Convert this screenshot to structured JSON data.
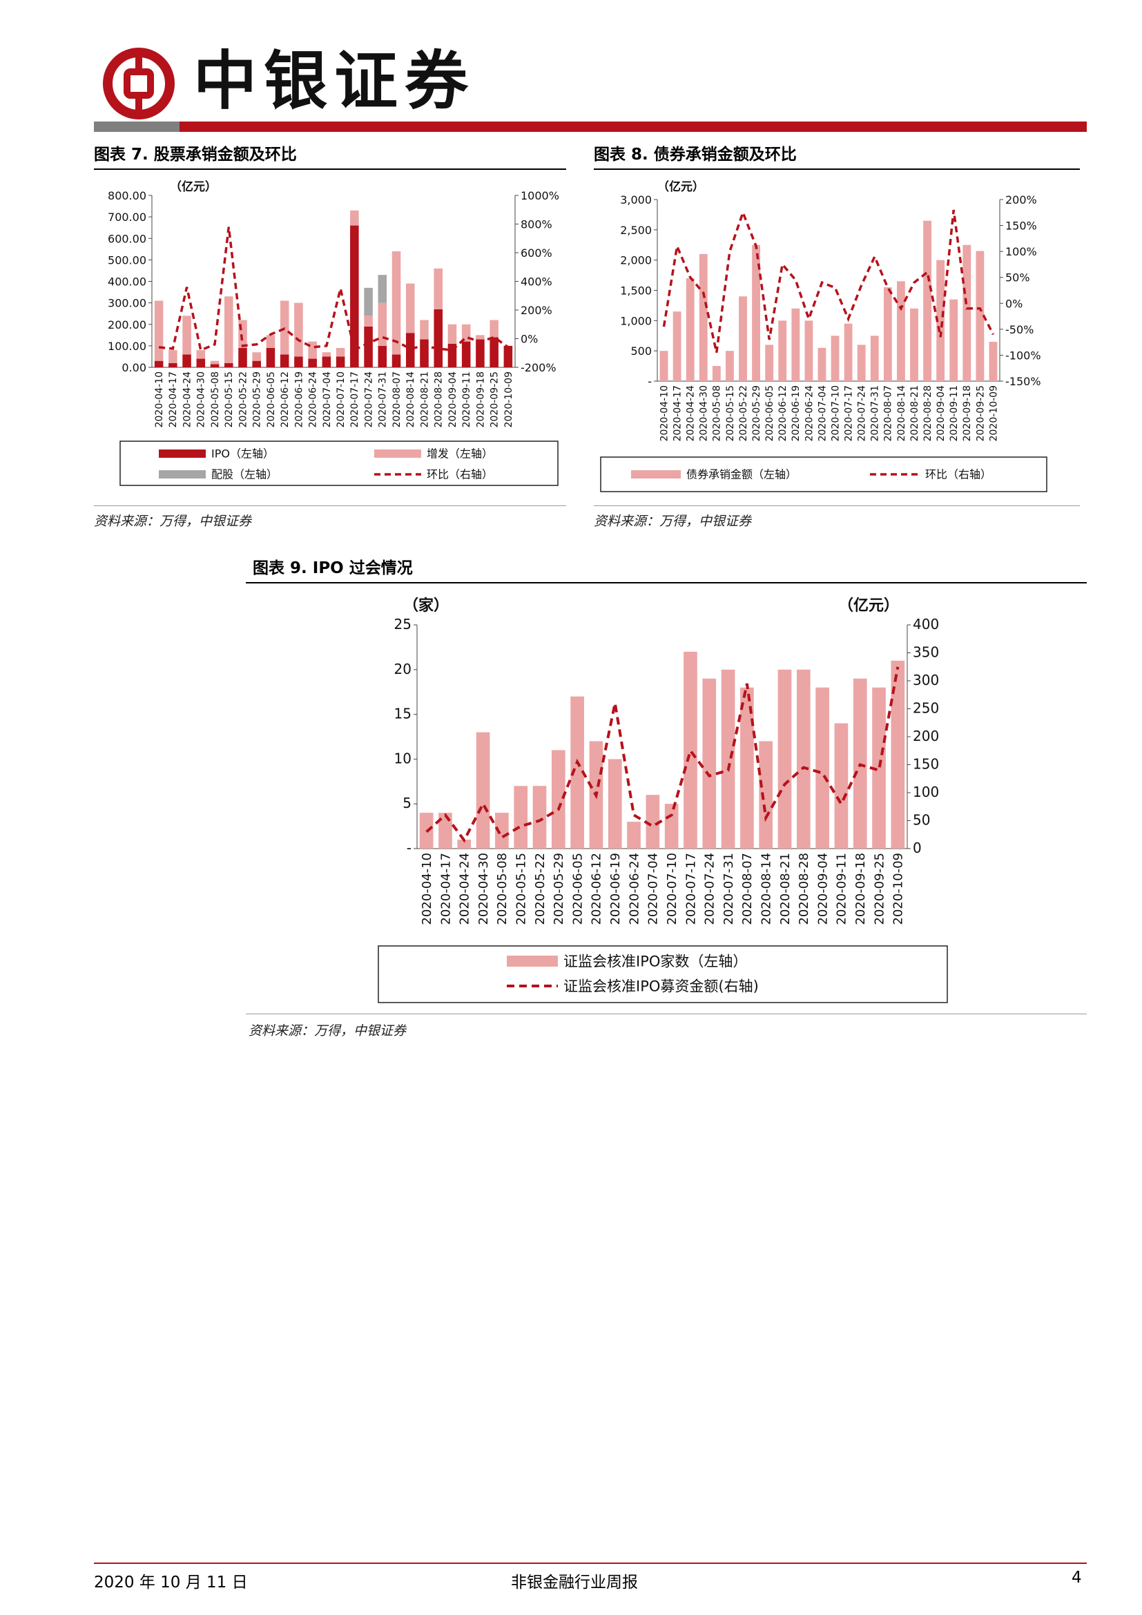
{
  "header": {
    "brand": "中银证券",
    "logo_name": "bank-of-china-logo",
    "colors": {
      "brand_red": "#b5121b",
      "bar_gray": "#7f7f7f"
    }
  },
  "fig7": {
    "title": "图表 7. 股票承销金额及环比",
    "source": "资料来源：万得，中银证券",
    "chart_data": {
      "type": "bar",
      "stacked": true,
      "unit_left": "（亿元）",
      "categories": [
        "2020-04-10",
        "2020-04-17",
        "2020-04-24",
        "2020-04-30",
        "2020-05-08",
        "2020-05-15",
        "2020-05-22",
        "2020-05-29",
        "2020-06-05",
        "2020-06-12",
        "2020-06-19",
        "2020-06-24",
        "2020-07-04",
        "2020-07-10",
        "2020-07-17",
        "2020-07-24",
        "2020-07-31",
        "2020-08-07",
        "2020-08-14",
        "2020-08-21",
        "2020-08-28",
        "2020-09-04",
        "2020-09-11",
        "2020-09-18",
        "2020-09-25",
        "2020-10-09"
      ],
      "left_ticks": [
        "800.00",
        "700.00",
        "600.00",
        "500.00",
        "400.00",
        "300.00",
        "200.00",
        "100.00",
        "0.00"
      ],
      "right_ticks": [
        "1000%",
        "800%",
        "600%",
        "400%",
        "200%",
        "0%",
        "-200%"
      ],
      "ylim": [
        0,
        800
      ],
      "y2lim": [
        -200,
        1000
      ],
      "series": [
        {
          "name": "IPO（左轴）",
          "kind": "bar",
          "color": "#b5121b",
          "values": [
            30,
            20,
            60,
            40,
            15,
            20,
            90,
            30,
            90,
            60,
            50,
            40,
            50,
            50,
            660,
            190,
            100,
            60,
            160,
            130,
            270,
            110,
            120,
            130,
            140,
            100
          ]
        },
        {
          "name": "增发（左轴）",
          "kind": "bar",
          "color": "#eba5a5",
          "values": [
            280,
            60,
            180,
            40,
            15,
            310,
            130,
            40,
            60,
            250,
            250,
            80,
            20,
            40,
            70,
            50,
            200,
            480,
            230,
            90,
            190,
            90,
            80,
            20,
            80,
            0
          ]
        },
        {
          "name": "配股（左轴）",
          "kind": "bar",
          "color": "#a6a6a6",
          "values": [
            0,
            0,
            0,
            0,
            0,
            0,
            0,
            0,
            0,
            0,
            0,
            0,
            0,
            0,
            0,
            130,
            130,
            0,
            0,
            0,
            0,
            0,
            0,
            0,
            0,
            0
          ]
        },
        {
          "name": "环比（右轴）",
          "kind": "line",
          "color": "#b5121b",
          "values": [
            -60,
            -70,
            360,
            -80,
            -40,
            780,
            -50,
            -40,
            30,
            70,
            -10,
            -60,
            -50,
            350,
            -80,
            -30,
            10,
            -20,
            -70,
            -50,
            -70,
            -80,
            10,
            -20,
            10,
            -60
          ]
        }
      ],
      "legend": [
        "IPO（左轴）",
        "增发（左轴）",
        "配股（左轴）",
        "环比（右轴）"
      ]
    }
  },
  "fig8": {
    "title": "图表 8. 债券承销金额及环比",
    "source": "资料来源：万得，中银证券",
    "chart_data": {
      "type": "bar",
      "unit_left": "（亿元）",
      "categories": [
        "2020-04-10",
        "2020-04-17",
        "2020-04-24",
        "2020-04-30",
        "2020-05-08",
        "2020-05-15",
        "2020-05-22",
        "2020-05-29",
        "2020-06-05",
        "2020-06-12",
        "2020-06-19",
        "2020-06-24",
        "2020-07-04",
        "2020-07-10",
        "2020-07-17",
        "2020-07-24",
        "2020-07-31",
        "2020-08-07",
        "2020-08-14",
        "2020-08-21",
        "2020-08-28",
        "2020-09-04",
        "2020-09-11",
        "2020-09-18",
        "2020-09-25",
        "2020-10-09"
      ],
      "left_ticks": [
        "3,000",
        "2,500",
        "2,000",
        "1,500",
        "1,000",
        "500",
        "-"
      ],
      "right_ticks": [
        "200%",
        "150%",
        "100%",
        "50%",
        "0%",
        "-50%",
        "-100%",
        "-150%"
      ],
      "ylim": [
        0,
        3000
      ],
      "y2lim": [
        -150,
        200
      ],
      "series": [
        {
          "name": "债券承销金额（左轴）",
          "kind": "bar",
          "color": "#eba5a5",
          "values": [
            500,
            1150,
            1700,
            2100,
            250,
            500,
            1400,
            2250,
            600,
            1000,
            1200,
            1000,
            550,
            750,
            950,
            600,
            750,
            1550,
            1650,
            1200,
            2650,
            2000,
            1350,
            2250,
            2150,
            650
          ]
        },
        {
          "name": "环比（右轴）",
          "kind": "line",
          "color": "#b5121b",
          "values": [
            -45,
            110,
            50,
            20,
            -95,
            100,
            175,
            110,
            -70,
            75,
            45,
            -30,
            40,
            30,
            -30,
            35,
            90,
            30,
            -10,
            40,
            60,
            -65,
            180,
            -10,
            -10,
            -60
          ]
        }
      ],
      "legend": [
        "债券承销金额（左轴）",
        "环比（右轴）"
      ]
    }
  },
  "fig9": {
    "title": "图表 9. IPO 过会情况",
    "source": "资料来源：万得，中银证券",
    "chart_data": {
      "type": "bar",
      "unit_left": "（家）",
      "unit_right": "（亿元）",
      "categories": [
        "2020-04-10",
        "2020-04-17",
        "2020-04-24",
        "2020-04-30",
        "2020-05-08",
        "2020-05-15",
        "2020-05-22",
        "2020-05-29",
        "2020-06-05",
        "2020-06-12",
        "2020-06-19",
        "2020-06-24",
        "2020-07-04",
        "2020-07-10",
        "2020-07-17",
        "2020-07-24",
        "2020-07-31",
        "2020-08-07",
        "2020-08-14",
        "2020-08-21",
        "2020-08-28",
        "2020-09-04",
        "2020-09-11",
        "2020-09-18",
        "2020-09-25",
        "2020-10-09"
      ],
      "left_ticks": [
        "25",
        "20",
        "15",
        "10",
        "5",
        "-"
      ],
      "right_ticks": [
        "400",
        "350",
        "300",
        "250",
        "200",
        "150",
        "100",
        "50",
        "0"
      ],
      "ylim": [
        0,
        25
      ],
      "y2lim": [
        0,
        400
      ],
      "series": [
        {
          "name": "证监会核准IPO家数（左轴）",
          "kind": "bar",
          "color": "#eba5a5",
          "values": [
            4,
            4,
            1,
            13,
            4,
            7,
            7,
            11,
            17,
            12,
            10,
            3,
            6,
            5,
            22,
            19,
            20,
            18,
            12,
            20,
            20,
            18,
            14,
            19,
            18,
            21
          ]
        },
        {
          "name": "证监会核准IPO募资金额(右轴)",
          "kind": "line",
          "color": "#b5121b",
          "values": [
            30,
            60,
            15,
            80,
            20,
            40,
            50,
            70,
            155,
            95,
            260,
            60,
            40,
            60,
            175,
            130,
            140,
            295,
            55,
            115,
            145,
            135,
            80,
            150,
            140,
            325
          ]
        }
      ],
      "legend": [
        "证监会核准IPO家数（左轴）",
        "证监会核准IPO募资金额(右轴)"
      ]
    }
  },
  "footer": {
    "date": "2020 年 10 月 11 日",
    "report_name": "非银金融行业周报",
    "page": "4"
  }
}
